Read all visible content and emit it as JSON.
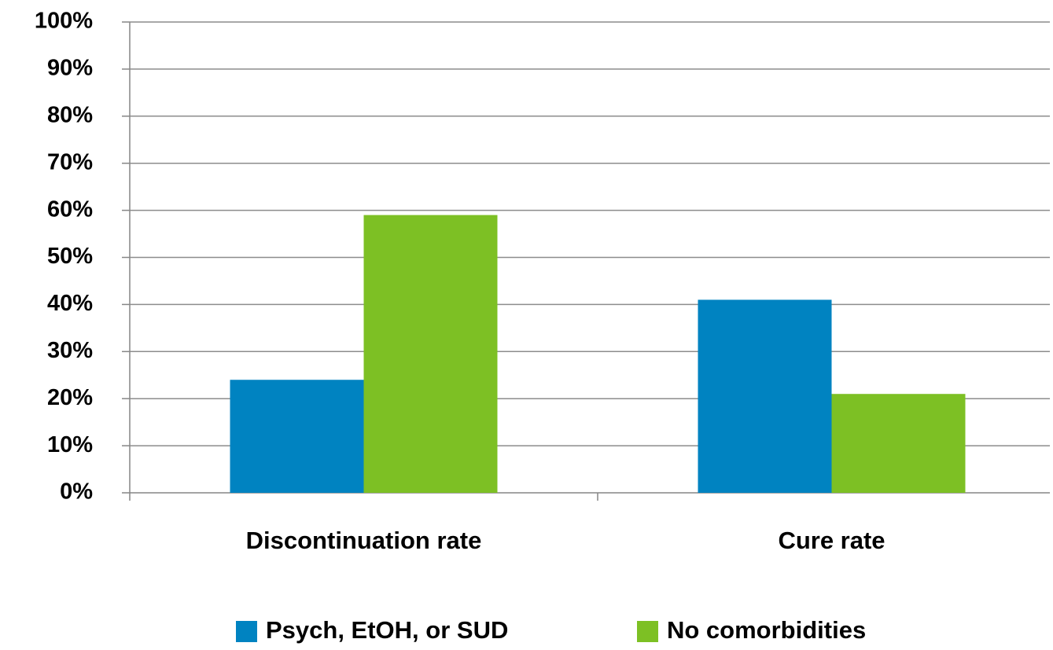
{
  "chart_data": {
    "type": "bar",
    "categories": [
      "Discontinuation rate",
      "Cure rate"
    ],
    "series": [
      {
        "name": "Psych, EtOH, or SUD",
        "color": "#0083c1",
        "values": [
          24,
          41
        ]
      },
      {
        "name": "No comorbidities",
        "color": "#7dc024",
        "values": [
          59,
          21
        ]
      }
    ],
    "ylim": [
      0,
      100
    ],
    "yticks": [
      {
        "value": 0,
        "label": "0%"
      },
      {
        "value": 10,
        "label": "10%"
      },
      {
        "value": 20,
        "label": "20%"
      },
      {
        "value": 30,
        "label": "30%"
      },
      {
        "value": 40,
        "label": "40%"
      },
      {
        "value": 50,
        "label": "50%"
      },
      {
        "value": 60,
        "label": "60%"
      },
      {
        "value": 70,
        "label": "70%"
      },
      {
        "value": 80,
        "label": "80%"
      },
      {
        "value": 90,
        "label": "90%"
      },
      {
        "value": 100,
        "label": "100%"
      }
    ],
    "grid": true,
    "legend": "bottom"
  }
}
